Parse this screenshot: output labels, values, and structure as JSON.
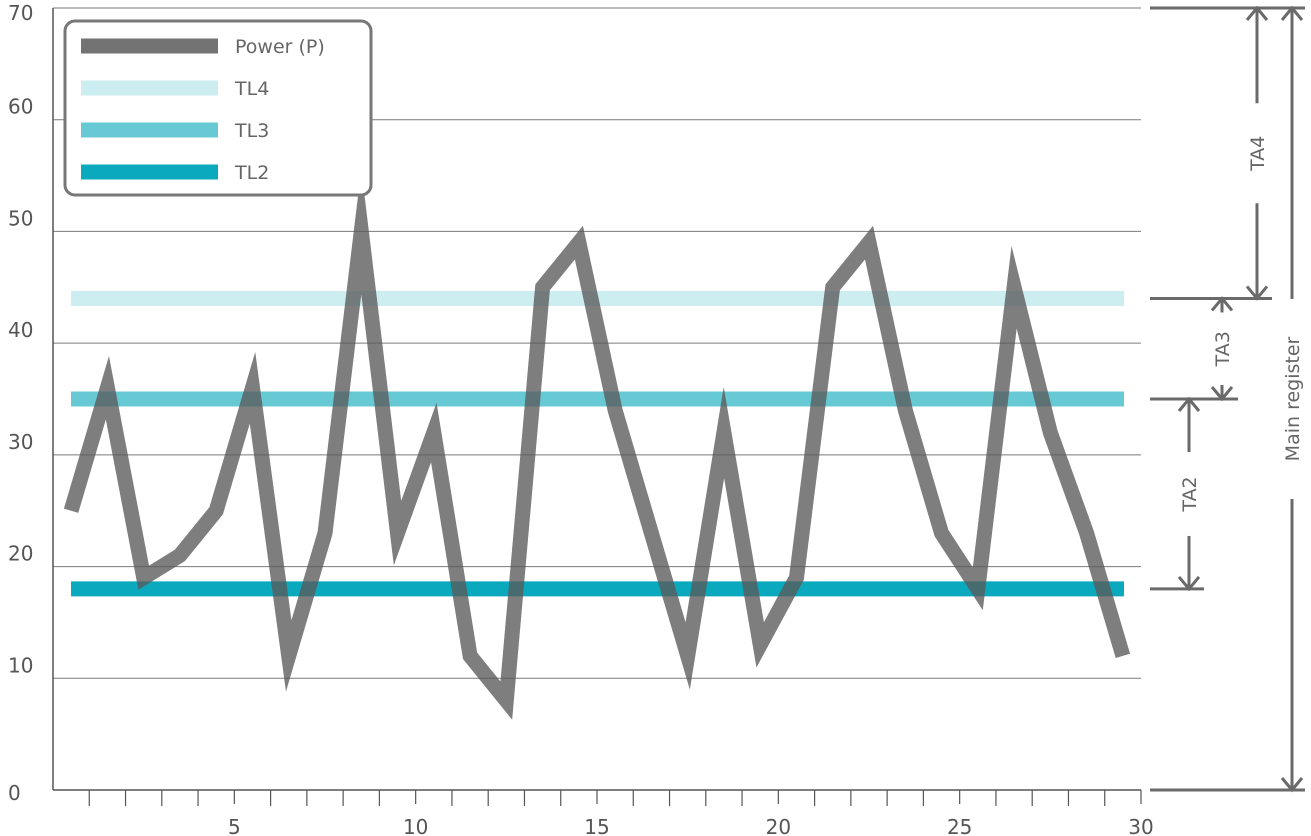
{
  "chart_data": {
    "type": "line",
    "xlim": [
      0,
      30
    ],
    "ylim": [
      0,
      70
    ],
    "x_ticks": [
      5,
      10,
      15,
      20,
      25,
      30
    ],
    "y_ticks": [
      0,
      10,
      20,
      30,
      40,
      50,
      60,
      70
    ],
    "grid": "horizontal",
    "legend_position": "top-left",
    "series": [
      {
        "name": "Power (P)",
        "color": "#5a5a5a",
        "x": [
          0.5,
          1.5,
          2.5,
          3.5,
          4.5,
          5.5,
          6.5,
          7.5,
          8.5,
          9.5,
          10.5,
          11.5,
          12.5,
          13.5,
          14.5,
          15.5,
          16.5,
          17.5,
          18.5,
          19.5,
          20.5,
          21.5,
          22.5,
          23.5,
          24.5,
          25.5,
          26.5,
          27.5,
          28.5,
          29.5
        ],
        "y": [
          25,
          36,
          19,
          21,
          25,
          36,
          12,
          23,
          50,
          23,
          32,
          12,
          8,
          45,
          49,
          34,
          23,
          12,
          32,
          13,
          19,
          45,
          49,
          34,
          23,
          18,
          45,
          32,
          23,
          12
        ]
      }
    ],
    "threshold_lines": [
      {
        "name": "TL4",
        "value": 44,
        "color": "#cdeef1"
      },
      {
        "name": "TL3",
        "value": 35,
        "color": "#66c9d4"
      },
      {
        "name": "TL2",
        "value": 18,
        "color": "#0aa9be"
      }
    ],
    "brackets": [
      {
        "label": "TA4",
        "from": 44,
        "to": 70
      },
      {
        "label": "TA3",
        "from": 35,
        "to": 44
      },
      {
        "label": "TA2",
        "from": 18,
        "to": 35
      },
      {
        "label": "Main register",
        "from": 0,
        "to": 70
      }
    ]
  }
}
